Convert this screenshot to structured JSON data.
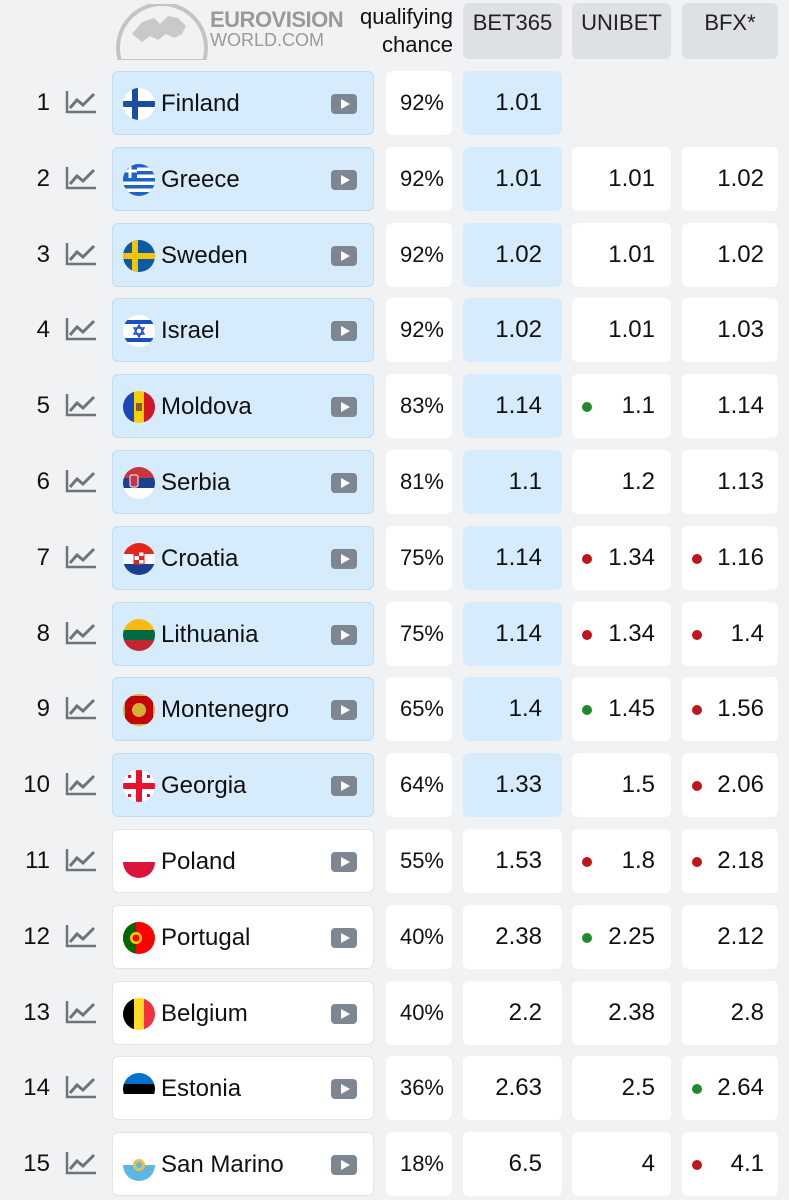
{
  "header": {
    "logo_line1": "EUROVISION",
    "logo_line2": "WORLD.COM",
    "qualifying_line1": "qualifying",
    "qualifying_line2": "chance",
    "bookmakers": [
      "BET365",
      "UNIBET",
      "BFX*"
    ]
  },
  "colors": {
    "qualified_bg": "#d6ebfc",
    "non_qualified_bg": "#ffffff",
    "dot_up": "#1e8a2e",
    "dot_down": "#c0141b"
  },
  "rows": [
    {
      "rank": "1",
      "country": "Finland",
      "flag": "finland-flag",
      "qualified": true,
      "chance": "92%",
      "bet365": "1.01",
      "unibet": "",
      "unibet_dot": "",
      "bfx": "",
      "bfx_dot": ""
    },
    {
      "rank": "2",
      "country": "Greece",
      "flag": "greece-flag",
      "qualified": true,
      "chance": "92%",
      "bet365": "1.01",
      "unibet": "1.01",
      "unibet_dot": "",
      "bfx": "1.02",
      "bfx_dot": ""
    },
    {
      "rank": "3",
      "country": "Sweden",
      "flag": "sweden-flag",
      "qualified": true,
      "chance": "92%",
      "bet365": "1.02",
      "unibet": "1.01",
      "unibet_dot": "",
      "bfx": "1.02",
      "bfx_dot": ""
    },
    {
      "rank": "4",
      "country": "Israel",
      "flag": "israel-flag",
      "qualified": true,
      "chance": "92%",
      "bet365": "1.02",
      "unibet": "1.01",
      "unibet_dot": "",
      "bfx": "1.03",
      "bfx_dot": ""
    },
    {
      "rank": "5",
      "country": "Moldova",
      "flag": "moldova-flag",
      "qualified": true,
      "chance": "83%",
      "bet365": "1.14",
      "unibet": "1.1",
      "unibet_dot": "green",
      "bfx": "1.14",
      "bfx_dot": ""
    },
    {
      "rank": "6",
      "country": "Serbia",
      "flag": "serbia-flag",
      "qualified": true,
      "chance": "81%",
      "bet365": "1.1",
      "unibet": "1.2",
      "unibet_dot": "",
      "bfx": "1.13",
      "bfx_dot": ""
    },
    {
      "rank": "7",
      "country": "Croatia",
      "flag": "croatia-flag",
      "qualified": true,
      "chance": "75%",
      "bet365": "1.14",
      "unibet": "1.34",
      "unibet_dot": "red",
      "bfx": "1.16",
      "bfx_dot": "red"
    },
    {
      "rank": "8",
      "country": "Lithuania",
      "flag": "lithuania-flag",
      "qualified": true,
      "chance": "75%",
      "bet365": "1.14",
      "unibet": "1.34",
      "unibet_dot": "red",
      "bfx": "1.4",
      "bfx_dot": "red"
    },
    {
      "rank": "9",
      "country": "Montenegro",
      "flag": "montenegro-flag",
      "qualified": true,
      "chance": "65%",
      "bet365": "1.4",
      "unibet": "1.45",
      "unibet_dot": "green",
      "bfx": "1.56",
      "bfx_dot": "red"
    },
    {
      "rank": "10",
      "country": "Georgia",
      "flag": "georgia-flag",
      "qualified": true,
      "chance": "64%",
      "bet365": "1.33",
      "unibet": "1.5",
      "unibet_dot": "",
      "bfx": "2.06",
      "bfx_dot": "red"
    },
    {
      "rank": "11",
      "country": "Poland",
      "flag": "poland-flag",
      "qualified": false,
      "chance": "55%",
      "bet365": "1.53",
      "unibet": "1.8",
      "unibet_dot": "red",
      "bfx": "2.18",
      "bfx_dot": "red"
    },
    {
      "rank": "12",
      "country": "Portugal",
      "flag": "portugal-flag",
      "qualified": false,
      "chance": "40%",
      "bet365": "2.38",
      "unibet": "2.25",
      "unibet_dot": "green",
      "bfx": "2.12",
      "bfx_dot": ""
    },
    {
      "rank": "13",
      "country": "Belgium",
      "flag": "belgium-flag",
      "qualified": false,
      "chance": "40%",
      "bet365": "2.2",
      "unibet": "2.38",
      "unibet_dot": "",
      "bfx": "2.8",
      "bfx_dot": ""
    },
    {
      "rank": "14",
      "country": "Estonia",
      "flag": "estonia-flag",
      "qualified": false,
      "chance": "36%",
      "bet365": "2.63",
      "unibet": "2.5",
      "unibet_dot": "",
      "bfx": "2.64",
      "bfx_dot": "green"
    },
    {
      "rank": "15",
      "country": "San Marino",
      "flag": "san-marino-flag",
      "qualified": false,
      "chance": "18%",
      "bet365": "6.5",
      "unibet": "4",
      "unibet_dot": "",
      "bfx": "4.1",
      "bfx_dot": "red"
    }
  ]
}
